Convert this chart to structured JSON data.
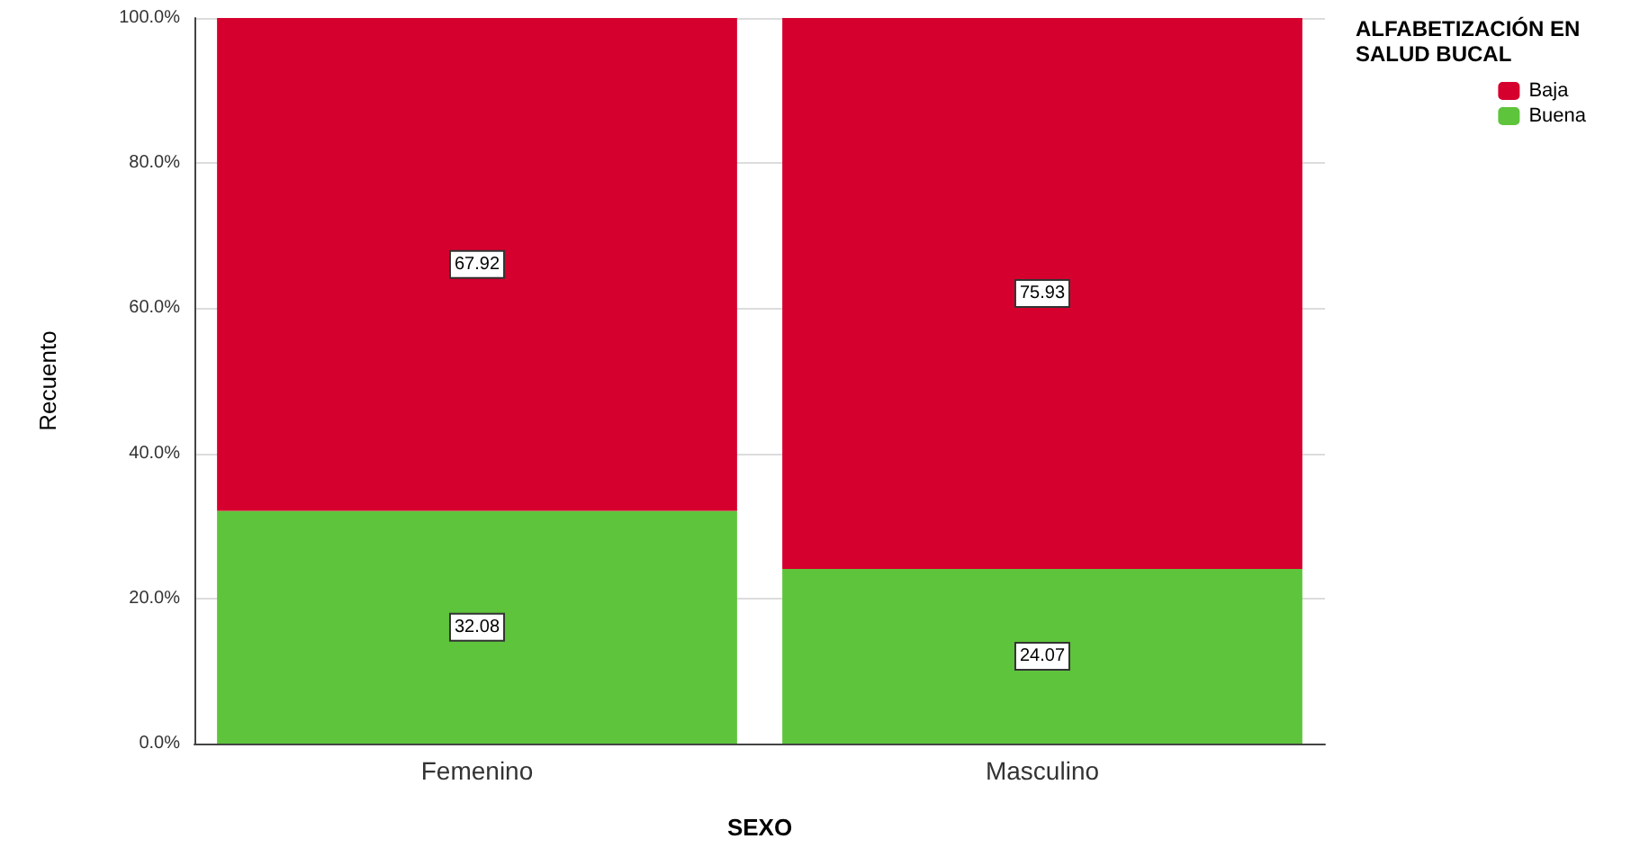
{
  "chart_data": {
    "type": "bar",
    "stacked": true,
    "xlabel": "SEXO",
    "ylabel": "Recuento",
    "legend_title": "ALFABETIZACIÓN EN SALUD BUCAL",
    "legend": "top right",
    "grid": "y",
    "data_labels": true,
    "categories": [
      "Femenino",
      "Masculino"
    ],
    "series": [
      {
        "name": "Buena",
        "color": "#5ec43c",
        "values": [
          32.08,
          24.07
        ]
      },
      {
        "name": "Baja",
        "color": "#d5002e",
        "values": [
          67.92,
          75.93
        ]
      }
    ],
    "ylim": [
      0,
      100
    ],
    "yticks": [
      {
        "value": 0,
        "label": "0.0%"
      },
      {
        "value": 20,
        "label": "20.0%"
      },
      {
        "value": 40,
        "label": "40.0%"
      },
      {
        "value": 60,
        "label": "60.0%"
      },
      {
        "value": 80,
        "label": "80.0%"
      },
      {
        "value": 100,
        "label": "100.0%"
      }
    ]
  }
}
